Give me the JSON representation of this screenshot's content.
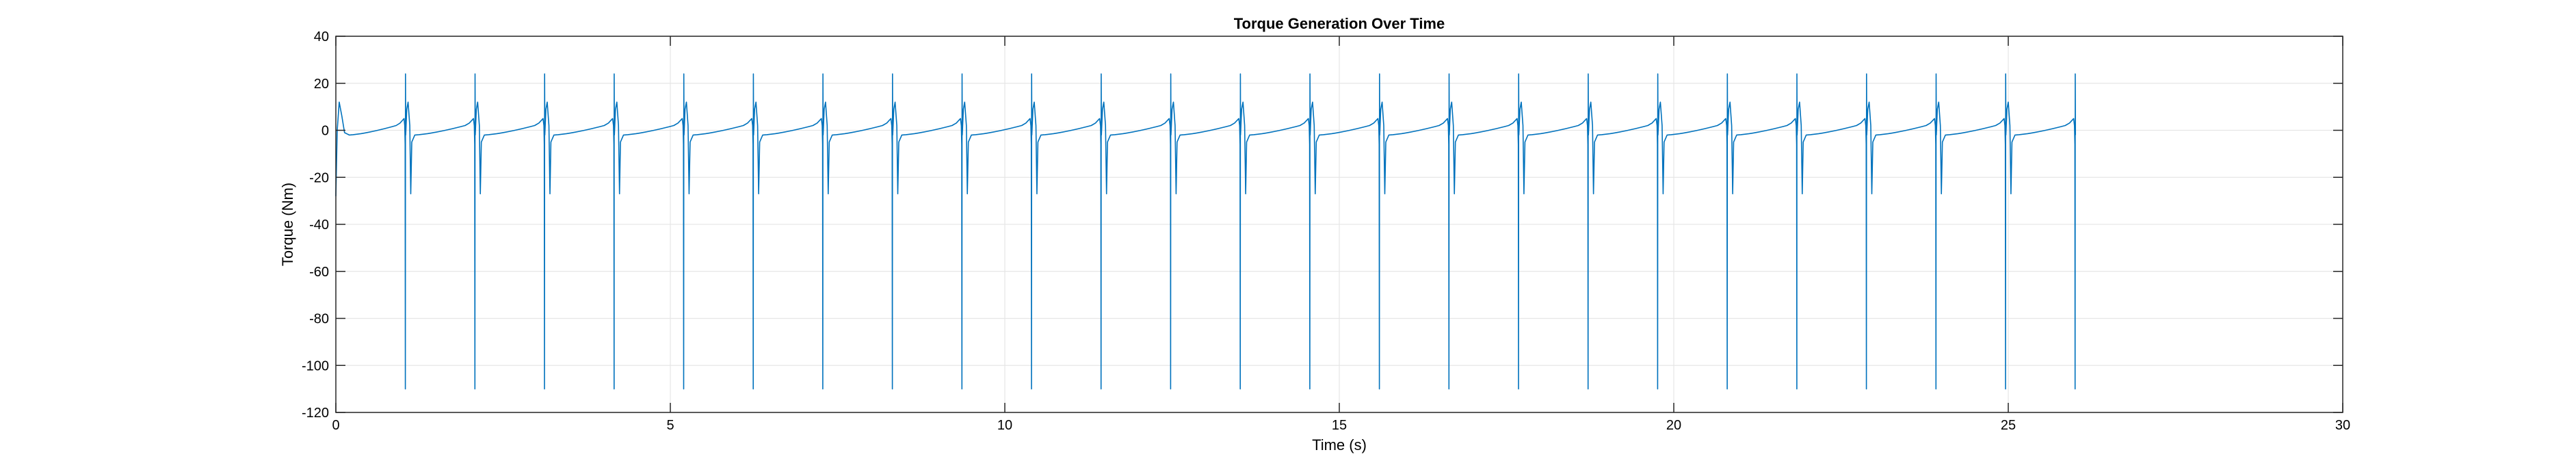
{
  "chart_data": {
    "type": "line",
    "title": "Torque Generation Over Time",
    "xlabel": "Time (s)",
    "ylabel": "Torque (Nm)",
    "xlim": [
      0,
      30
    ],
    "ylim": [
      -120,
      40
    ],
    "xticks": [
      0,
      5,
      10,
      15,
      20,
      25,
      30
    ],
    "yticks": [
      40,
      20,
      0,
      -20,
      -40,
      -60,
      -80,
      -100,
      -120
    ],
    "grid": true,
    "series": [
      {
        "color": "#0072BD",
        "pulse_times": [
          1.04,
          2.08,
          3.12,
          4.16,
          5.2,
          6.24,
          7.28,
          8.32,
          9.36,
          10.4,
          11.44,
          12.48,
          13.52,
          14.56,
          15.6,
          16.64,
          17.68,
          18.72,
          19.76,
          20.8,
          21.84,
          22.88,
          23.92,
          24.96,
          26.0
        ],
        "pulse_max": 24,
        "pulse_min": -110,
        "rebound_peak": 12,
        "post_pulse_dip": -27,
        "baseline_start": -2,
        "baseline_end": 3
      }
    ]
  }
}
